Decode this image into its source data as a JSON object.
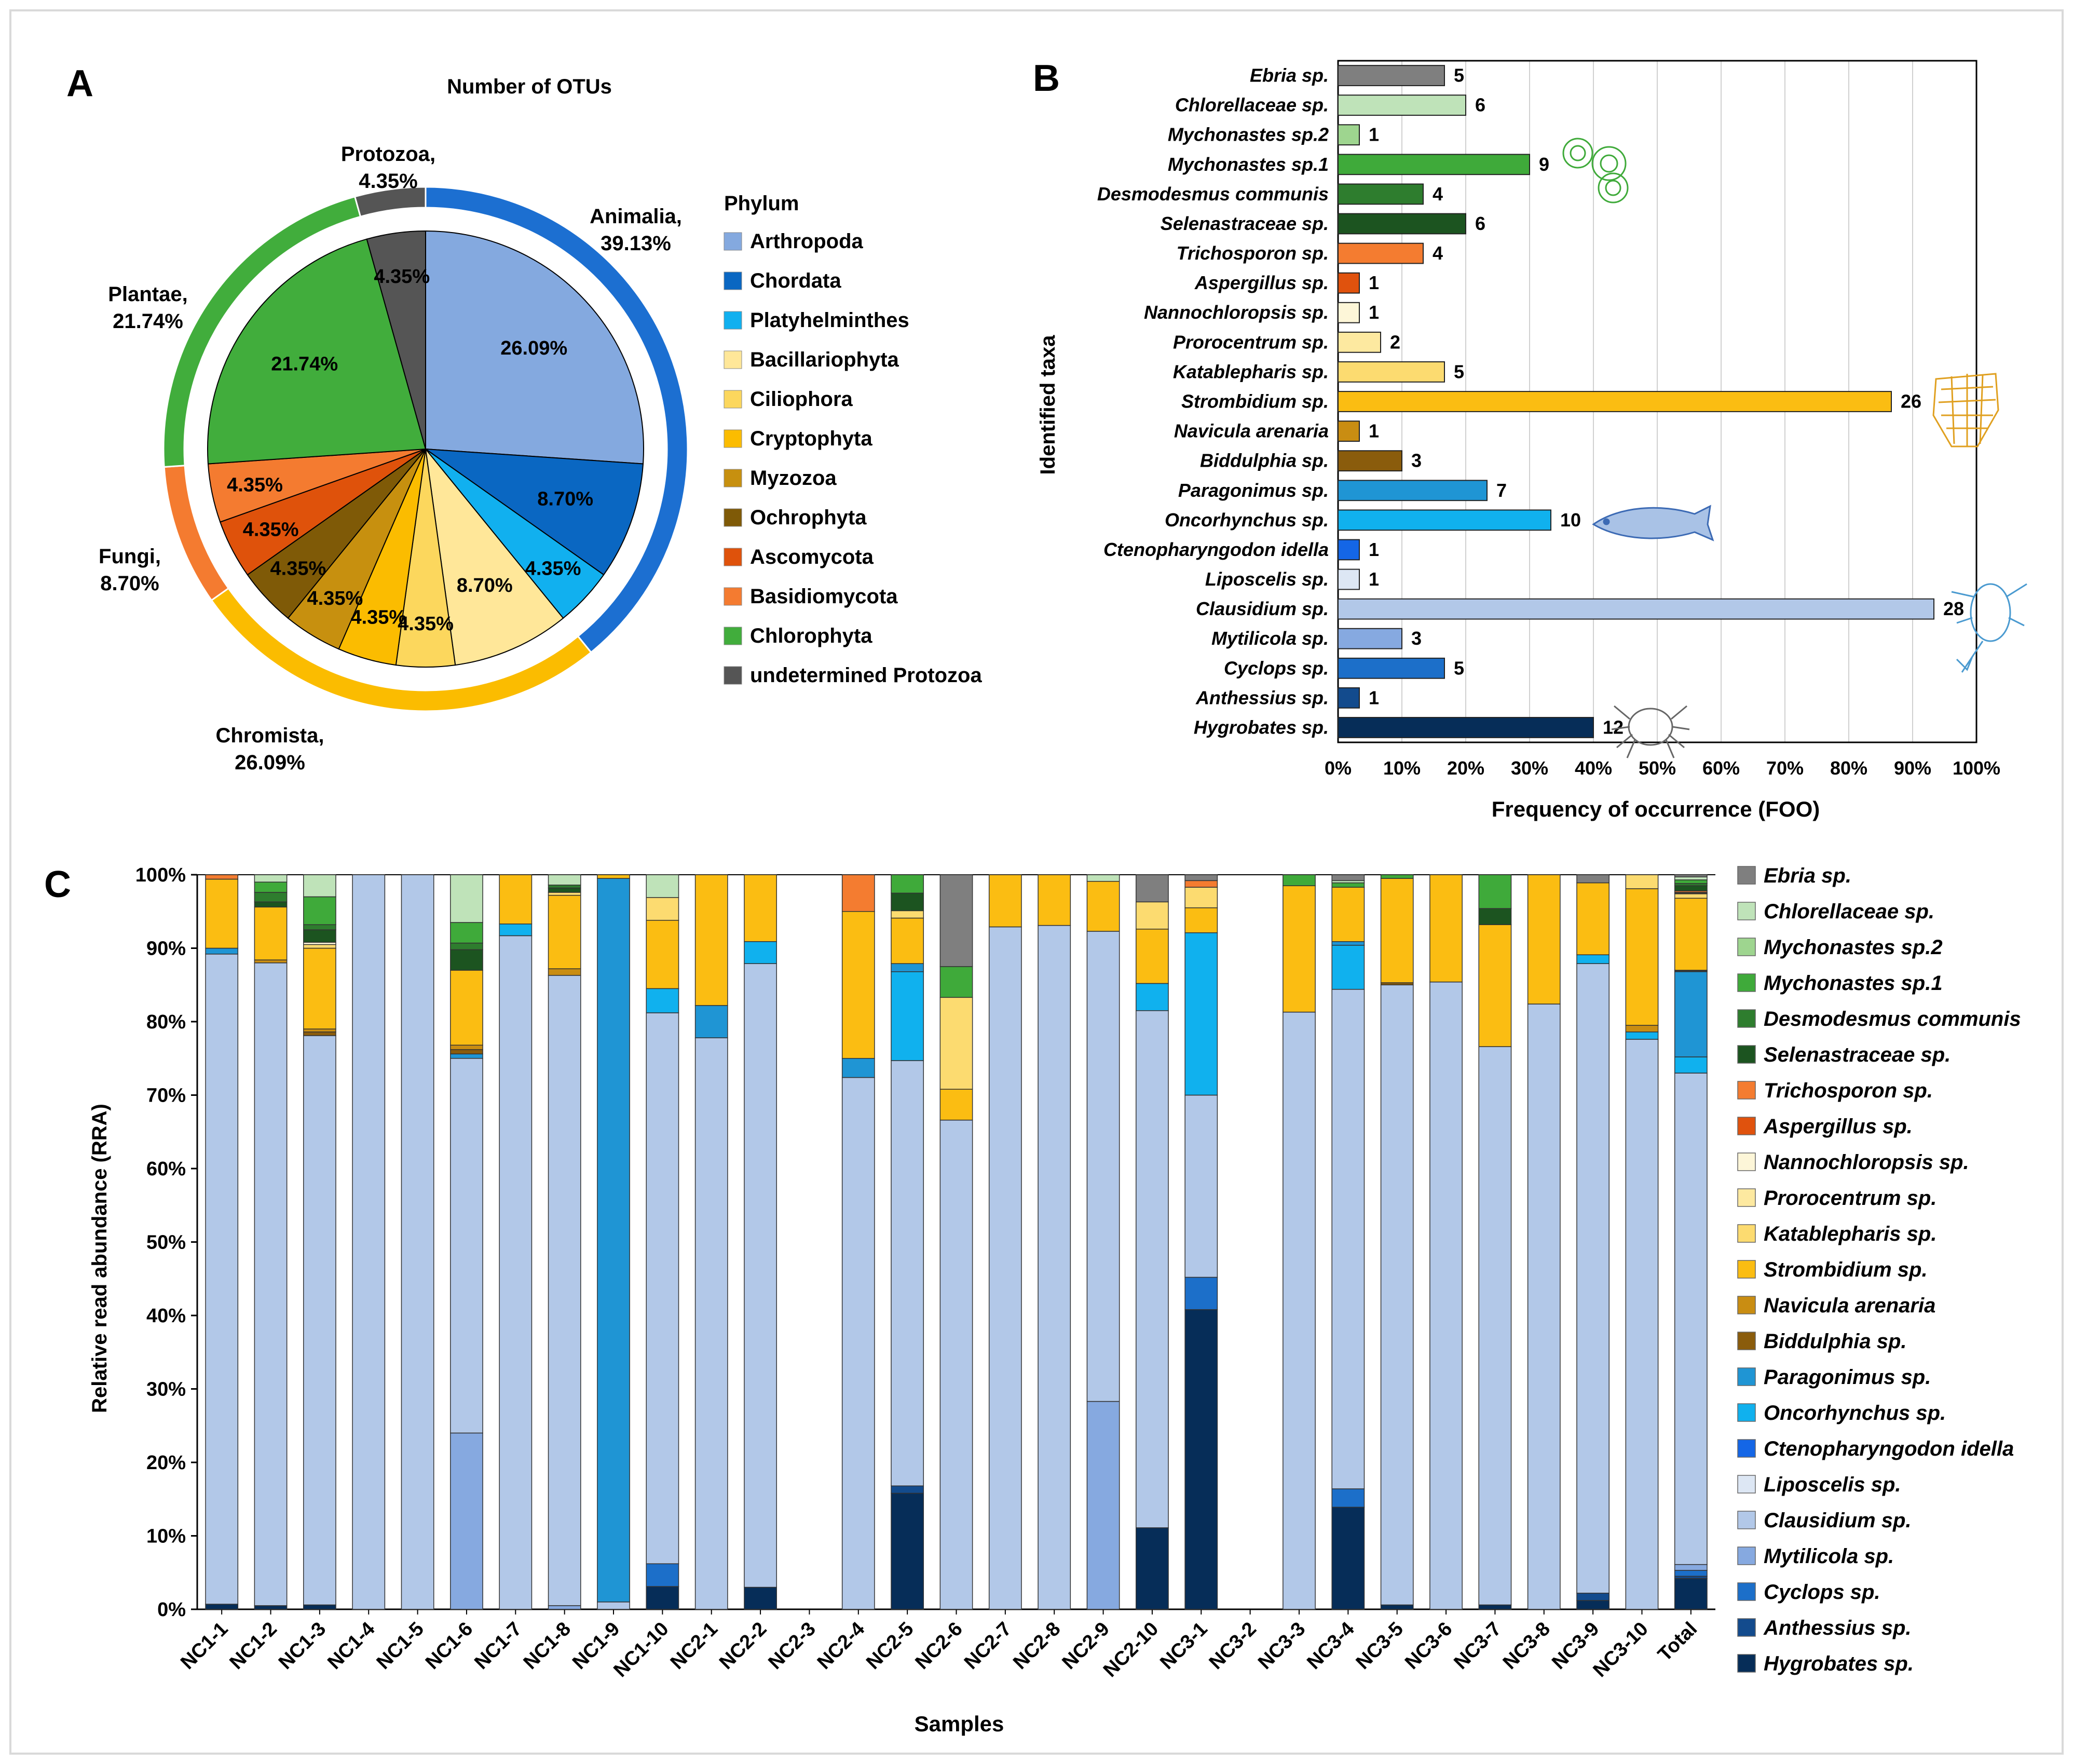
{
  "panels": {
    "a": "A",
    "b": "B",
    "c": "C"
  },
  "colors": {
    "Ebria sp.": "#7f7f7f",
    "Chlorellaceae sp.": "#bfe3b9",
    "Mychonastes sp.2": "#9ed58f",
    "Mychonastes sp.1": "#3faa3a",
    "Desmodesmus communis": "#2e7d2e",
    "Selenastraceae sp.": "#1c5420",
    "Trichosporon sp.": "#f47c30",
    "Aspergillus sp.": "#e0520d",
    "Nannochloropsis sp.": "#fdf6d8",
    "Prorocentrum sp.": "#fde9a0",
    "Katablepharis sp.": "#fcdb70",
    "Strombidium sp.": "#fbbd12",
    "Navicula arenaria": "#c98d12",
    "Biddulphia sp.": "#8a5c0c",
    "Paragonimus sp.": "#1f95d4",
    "Oncorhynchus sp.": "#10b1ee",
    "Ctenopharyngodon idella": "#1466e6",
    "Liposcelis sp.": "#dde7f4",
    "Clausidium sp.": "#b2c8e8",
    "Mytilicola sp.": "#86a9e0",
    "Cyclops sp.": "#1c6fc9",
    "Anthessius sp.": "#134b8d",
    "Hygrobates sp.": "#062d58"
  },
  "chart_data": [
    {
      "type": "pie",
      "title": "Number of OTUs",
      "legend_title": "Phylum",
      "slices": [
        {
          "name": "Arthropoda",
          "value": 26.09,
          "label": "26.09%",
          "color": "#84a9df"
        },
        {
          "name": "Chordata",
          "value": 8.7,
          "label": "8.70%",
          "color": "#0a67c2"
        },
        {
          "name": "Platyhelminthes",
          "value": 4.35,
          "label": "4.35%",
          "color": "#11b0ef"
        },
        {
          "name": "Bacillariophyta",
          "value": 8.7,
          "label": "8.70%",
          "color": "#ffe799"
        },
        {
          "name": "Ciliophora",
          "value": 4.35,
          "label": "4.35%",
          "color": "#fcd75d"
        },
        {
          "name": "Cryptophyta",
          "value": 4.35,
          "label": "4.35%",
          "color": "#fbbc00"
        },
        {
          "name": "Myzozoa",
          "value": 4.35,
          "label": "4.35%",
          "color": "#c7900f"
        },
        {
          "name": "Ochrophyta",
          "value": 4.35,
          "label": "4.35%",
          "color": "#7f5a07"
        },
        {
          "name": "Ascomycota",
          "value": 4.35,
          "label": "4.35%",
          "color": "#df520b"
        },
        {
          "name": "Basidiomycota",
          "value": 4.35,
          "label": "4.35%",
          "color": "#f47b30"
        },
        {
          "name": "Chlorophyta",
          "value": 21.74,
          "label": "21.74%",
          "color": "#41ad3c"
        },
        {
          "name": "undetermined Protozoa",
          "value": 4.35,
          "label": "4.35%",
          "color": "#555555"
        }
      ],
      "outer_ring": [
        {
          "name": "Animalia",
          "label": "Animalia,",
          "pct": "39.13%",
          "value": 39.13,
          "color": "#1c6fd1"
        },
        {
          "name": "Chromista",
          "label": "Chromista,",
          "pct": "26.09%",
          "value": 26.09,
          "color": "#fbbc00"
        },
        {
          "name": "Fungi",
          "label": "Fungi,",
          "pct": "8.70%",
          "value": 8.7,
          "color": "#f47b30"
        },
        {
          "name": "Plantae",
          "label": "Plantae,",
          "pct": "21.74%",
          "value": 21.74,
          "color": "#41ad3c"
        },
        {
          "name": "Protozoa",
          "label": "Protozoa,",
          "pct": "4.35%",
          "value": 4.35,
          "color": "#555555"
        }
      ]
    },
    {
      "type": "bar",
      "orientation": "horizontal",
      "ylabel": "Identified taxa",
      "xlabel": "Frequency of occurrence (FOO)",
      "xlim": [
        0,
        100
      ],
      "ticks": [
        "0%",
        "10%",
        "20%",
        "30%",
        "40%",
        "50%",
        "60%",
        "70%",
        "80%",
        "90%",
        "100%"
      ],
      "total_samples": 30,
      "categories": [
        "Ebria sp.",
        "Chlorellaceae sp.",
        "Mychonastes sp.2",
        "Mychonastes sp.1",
        "Desmodesmus communis",
        "Selenastraceae sp.",
        "Trichosporon sp.",
        "Aspergillus sp.",
        "Nannochloropsis sp.",
        "Prorocentrum sp.",
        "Katablepharis sp.",
        "Strombidium sp.",
        "Navicula arenaria",
        "Biddulphia sp.",
        "Paragonimus sp.",
        "Oncorhynchus sp.",
        "Ctenopharyngodon idella",
        "Liposcelis sp.",
        "Clausidium sp.",
        "Mytilicola sp.",
        "Cyclops sp.",
        "Anthessius sp.",
        "Hygrobates sp."
      ],
      "values": [
        5,
        6,
        1,
        9,
        4,
        6,
        4,
        1,
        1,
        2,
        5,
        26,
        1,
        3,
        7,
        10,
        1,
        1,
        28,
        3,
        5,
        1,
        12
      ]
    },
    {
      "type": "bar",
      "stacked": true,
      "ylabel": "Relative read abundance (RRA)",
      "xlabel": "Samples",
      "ylim": [
        0,
        100
      ],
      "ticks": [
        "0%",
        "10%",
        "20%",
        "30%",
        "40%",
        "50%",
        "60%",
        "70%",
        "80%",
        "90%",
        "100%"
      ],
      "categories": [
        "NC1-1",
        "NC1-2",
        "NC1-3",
        "NC1-4",
        "NC1-5",
        "NC1-6",
        "NC1-7",
        "NC1-8",
        "NC1-9",
        "NC1-10",
        "NC2-1",
        "NC2-2",
        "NC2-3",
        "NC2-4",
        "NC2-5",
        "NC2-6",
        "NC2-7",
        "NC2-8",
        "NC2-9",
        "NC2-10",
        "NC3-1",
        "NC3-2",
        "NC3-3",
        "NC3-4",
        "NC3-5",
        "NC3-6",
        "NC3-7",
        "NC3-8",
        "NC3-9",
        "NC3-10",
        "Total"
      ],
      "legend": [
        "Ebria sp.",
        "Chlorellaceae sp.",
        "Mychonastes sp.2",
        "Mychonastes sp.1",
        "Desmodesmus communis",
        "Selenastraceae sp.",
        "Trichosporon sp.",
        "Aspergillus sp.",
        "Nannochloropsis sp.",
        "Prorocentrum sp.",
        "Katablepharis sp.",
        "Strombidium sp.",
        "Navicula arenaria",
        "Biddulphia sp.",
        "Paragonimus sp.",
        "Oncorhynchus sp.",
        "Ctenopharyngodon idella",
        "Liposcelis sp.",
        "Clausidium sp.",
        "Mytilicola sp.",
        "Cyclops sp.",
        "Anthessius sp.",
        "Hygrobates sp."
      ],
      "stack_order": [
        "Hygrobates sp.",
        "Anthessius sp.",
        "Cyclops sp.",
        "Mytilicola sp.",
        "Clausidium sp.",
        "Liposcelis sp.",
        "Ctenopharyngodon idella",
        "Oncorhynchus sp.",
        "Paragonimus sp.",
        "Biddulphia sp.",
        "Navicula arenaria",
        "Strombidium sp.",
        "Katablepharis sp.",
        "Prorocentrum sp.",
        "Nannochloropsis sp.",
        "Aspergillus sp.",
        "Trichosporon sp.",
        "Selenastraceae sp.",
        "Desmodesmus communis",
        "Mychonastes sp.1",
        "Mychonastes sp.2",
        "Chlorellaceae sp.",
        "Ebria sp."
      ],
      "series": {
        "NC1-1": {
          "Hygrobates sp.": 0.7,
          "Clausidium sp.": 88.5,
          "Paragonimus sp.": 0.8,
          "Strombidium sp.": 9.4,
          "Trichosporon sp.": 0.6
        },
        "NC1-2": {
          "Hygrobates sp.": 0.5,
          "Clausidium sp.": 87.5,
          "Strombidium sp.": 7.2,
          "Navicula arenaria": 0.4,
          "Selenastraceae sp.": 0.7,
          "Desmodesmus communis": 1.3,
          "Mychonastes sp.1": 1.4,
          "Chlorellaceae sp.": 1.0
        },
        "NC1-3": {
          "Hygrobates sp.": 0.6,
          "Clausidium sp.": 77.5,
          "Biddulphia sp.": 0.5,
          "Navicula arenaria": 0.4,
          "Strombidium sp.": 11.0,
          "Katablepharis sp.": 0.5,
          "Nannochloropsis sp.": 0.3,
          "Selenastraceae sp.": 1.7,
          "Desmodesmus communis": 0.7,
          "Mychonastes sp.1": 3.8,
          "Chlorellaceae sp.": 3.0
        },
        "NC1-4": {
          "Clausidium sp.": 100
        },
        "NC1-5": {
          "Clausidium sp.": 100
        },
        "NC1-6": {
          "Mytilicola sp.": 24.0,
          "Clausidium sp.": 51.0,
          "Paragonimus sp.": 0.6,
          "Biddulphia sp.": 0.6,
          "Navicula arenaria": 0.6,
          "Strombidium sp.": 10.2,
          "Selenastraceae sp.": 2.8,
          "Desmodesmus communis": 0.9,
          "Mychonastes sp.1": 2.8,
          "Chlorellaceae sp.": 6.5
        },
        "NC1-7": {
          "Clausidium sp.": 91.7,
          "Oncorhynchus sp.": 1.6,
          "Strombidium sp.": 6.7
        },
        "NC1-8": {
          "Mytilicola sp.": 0.5,
          "Clausidium sp.": 85.8,
          "Navicula arenaria": 0.9,
          "Strombidium sp.": 10.0,
          "Katablepharis sp.": 0.4,
          "Selenastraceae sp.": 0.6,
          "Desmodesmus communis": 0.4,
          "Chlorellaceae sp.": 1.4
        },
        "NC1-9": {
          "Clausidium sp.": 1.0,
          "Paragonimus sp.": 98.5,
          "Strombidium sp.": 0.5
        },
        "NC1-10": {
          "Hygrobates sp.": 3.1,
          "Cyclops sp.": 3.1,
          "Clausidium sp.": 75.0,
          "Oncorhynchus sp.": 3.3,
          "Strombidium sp.": 9.3,
          "Katablepharis sp.": 3.1,
          "Chlorellaceae sp.": 3.1
        },
        "NC2-1": {
          "Clausidium sp.": 77.8,
          "Paragonimus sp.": 4.4,
          "Strombidium sp.": 17.8
        },
        "NC2-2": {
          "Hygrobates sp.": 3.0,
          "Clausidium sp.": 84.9,
          "Oncorhynchus sp.": 3.0,
          "Strombidium sp.": 9.1
        },
        "NC2-3": {},
        "NC2-4": {
          "Clausidium sp.": 72.4,
          "Paragonimus sp.": 2.6,
          "Strombidium sp.": 20.0,
          "Trichosporon sp.": 5.0
        },
        "NC2-5": {
          "Hygrobates sp.": 15.8,
          "Anthessius sp.": 1.0,
          "Clausidium sp.": 57.9,
          "Oncorhynchus sp.": 12.1,
          "Paragonimus sp.": 1.1,
          "Strombidium sp.": 6.2,
          "Katablepharis sp.": 1.0,
          "Selenastraceae sp.": 2.4,
          "Mychonastes sp.1": 2.5
        },
        "NC2-6": {
          "Clausidium sp.": 66.6,
          "Strombidium sp.": 4.2,
          "Katablepharis sp.": 12.5,
          "Mychonastes sp.1": 4.2,
          "Ebria sp.": 12.5
        },
        "NC2-7": {
          "Clausidium sp.": 92.9,
          "Strombidium sp.": 7.1
        },
        "NC2-8": {
          "Clausidium sp.": 93.1,
          "Strombidium sp.": 6.9
        },
        "NC2-9": {
          "Mytilicola sp.": 28.3,
          "Clausidium sp.": 64.0,
          "Strombidium sp.": 6.8,
          "Chlorellaceae sp.": 0.9
        },
        "NC2-10": {
          "Hygrobates sp.": 11.1,
          "Clausidium sp.": 70.4,
          "Oncorhynchus sp.": 3.7,
          "Strombidium sp.": 7.4,
          "Katablepharis sp.": 3.7,
          "Ebria sp.": 3.7
        },
        "NC3-1": {
          "Hygrobates sp.": 40.8,
          "Cyclops sp.": 4.4,
          "Clausidium sp.": 24.8,
          "Oncorhynchus sp.": 22.1,
          "Strombidium sp.": 3.4,
          "Katablepharis sp.": 2.8,
          "Trichosporon sp.": 0.9,
          "Ebria sp.": 0.8
        },
        "NC3-2": {},
        "NC3-3": {
          "Clausidium sp.": 81.3,
          "Strombidium sp.": 17.2,
          "Mychonastes sp.1": 1.5
        },
        "NC3-4": {
          "Hygrobates sp.": 13.9,
          "Cyclops sp.": 2.5,
          "Clausidium sp.": 68.0,
          "Paragonimus sp.": 0.5,
          "Oncorhynchus sp.": 6.0,
          "Strombidium sp.": 7.4,
          "Mychonastes sp.1": 0.6,
          "Chlorellaceae sp.": 0.3,
          "Ebria sp.": 0.8
        },
        "NC3-5": {
          "Hygrobates sp.": 0.6,
          "Clausidium sp.": 84.4,
          "Biddulphia sp.": 0.3,
          "Strombidium sp.": 14.2,
          "Mychonastes sp.1": 0.5
        },
        "NC3-6": {
          "Clausidium sp.": 85.4,
          "Strombidium sp.": 14.6
        },
        "NC3-7": {
          "Hygrobates sp.": 0.6,
          "Clausidium sp.": 76.0,
          "Strombidium sp.": 16.6,
          "Selenastraceae sp.": 2.2,
          "Mychonastes sp.1": 4.6
        },
        "NC3-8": {
          "Clausidium sp.": 82.4,
          "Strombidium sp.": 17.6
        },
        "NC3-9": {
          "Hygrobates sp.": 1.2,
          "Anthessius sp.": 1.0,
          "Clausidium sp.": 85.7,
          "Oncorhynchus sp.": 1.2,
          "Strombidium sp.": 9.8,
          "Ebria sp.": 1.1
        },
        "NC3-10": {
          "Clausidium sp.": 77.6,
          "Oncorhynchus sp.": 1.0,
          "Navicula arenaria": 0.9,
          "Strombidium sp.": 18.6,
          "Katablepharis sp.": 1.9
        },
        "Total": {
          "Hygrobates sp.": 4.2,
          "Anthessius sp.": 0.3,
          "Cyclops sp.": 0.8,
          "Mytilicola sp.": 0.8,
          "Clausidium sp.": 66.9,
          "Oncorhynchus sp.": 2.2,
          "Paragonimus sp.": 11.6,
          "Biddulphia sp.": 0.1,
          "Navicula arenaria": 0.1,
          "Strombidium sp.": 9.8,
          "Katablepharis sp.": 0.6,
          "Prorocentrum sp.": 0.1,
          "Nannochloropsis sp.": 0.1,
          "Trichosporon sp.": 0.2,
          "Selenastraceae sp.": 0.7,
          "Desmodesmus communis": 0.3,
          "Mychonastes sp.1": 0.5,
          "Chlorellaceae sp.": 0.4,
          "Ebria sp.": 0.3
        }
      }
    }
  ]
}
